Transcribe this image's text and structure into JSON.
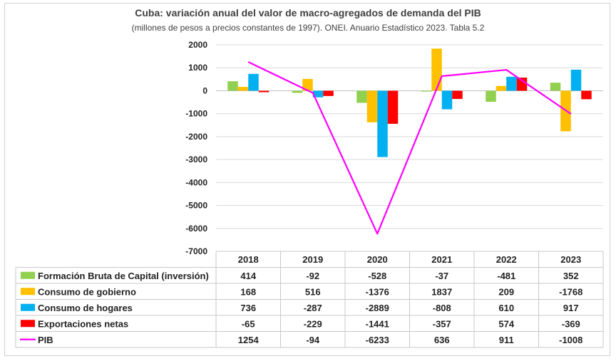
{
  "chart_data": {
    "type": "bar",
    "title": "Cuba: variación anual del valor de macro-agregados de demanda del PIB",
    "subtitle": "(millones de pesos a precios constantes de 1997). ONEI. Anuario Estadístico 2023. Tabla 5.2",
    "categories": [
      "2018",
      "2019",
      "2020",
      "2021",
      "2022",
      "2023"
    ],
    "ylim": [
      -7000,
      2000
    ],
    "yticks": [
      2000,
      1000,
      0,
      -1000,
      -2000,
      -3000,
      -4000,
      -5000,
      -6000,
      -7000
    ],
    "grid": true,
    "legend": "data-table",
    "series": [
      {
        "name": "Formación Bruta de Capital (inversión)",
        "type": "bar",
        "color": "#92d050",
        "values": [
          414,
          -92,
          -528,
          -37,
          -481,
          352
        ]
      },
      {
        "name": "Consumo de gobierno",
        "type": "bar",
        "color": "#ffc000",
        "values": [
          168,
          516,
          -1376,
          1837,
          209,
          -1768
        ]
      },
      {
        "name": "Consumo de hogares",
        "type": "bar",
        "color": "#00b0f0",
        "values": [
          736,
          -287,
          -2889,
          -808,
          610,
          917
        ]
      },
      {
        "name": "Exportaciones netas",
        "type": "bar",
        "color": "#ff0000",
        "values": [
          -65,
          -229,
          -1441,
          -357,
          574,
          -369
        ]
      },
      {
        "name": "PIB",
        "type": "line",
        "color": "#ff00ff",
        "values": [
          1254,
          -94,
          -6233,
          636,
          911,
          -1008
        ]
      }
    ]
  }
}
